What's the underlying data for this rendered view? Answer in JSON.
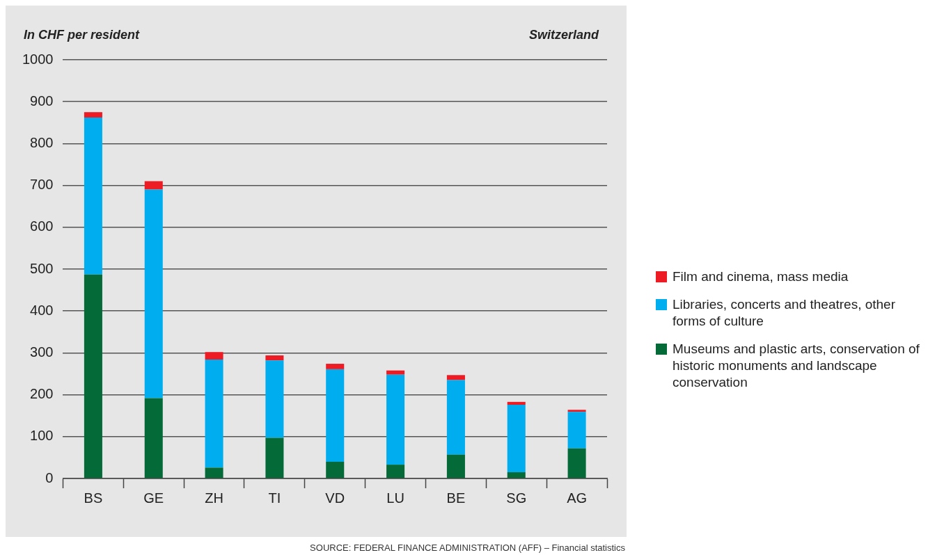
{
  "chart_data": {
    "type": "bar",
    "stacked": true,
    "title": "Switzerland",
    "ylabel": "In CHF per resident",
    "categories": [
      "BS",
      "GE",
      "ZH",
      "TI",
      "VD",
      "LU",
      "BE",
      "SG",
      "AG"
    ],
    "series": [
      {
        "name": "Museums and plastic arts, conservation of historic monuments and landscape conservation",
        "color": "#046a38",
        "values": [
          487,
          192,
          26,
          97,
          40,
          33,
          57,
          15,
          72
        ]
      },
      {
        "name": "Libraries, concerts and theatres, other forms of culture",
        "color": "#00aeef",
        "values": [
          375,
          498,
          258,
          185,
          221,
          215,
          178,
          161,
          87
        ]
      },
      {
        "name": "Film and cinema, mass media",
        "color": "#ed1c24",
        "values": [
          13,
          20,
          18,
          12,
          13,
          10,
          12,
          7,
          5
        ]
      }
    ],
    "ylim": [
      0,
      1000
    ],
    "yticks": [
      0,
      100,
      200,
      300,
      400,
      500,
      600,
      700,
      800,
      900,
      1000
    ],
    "grid": "y",
    "legend": "right",
    "annotations": [
      "SOURCE: FEDERAL FINANCE ADMINISTRATION (AFF) – Financial statistics"
    ]
  }
}
